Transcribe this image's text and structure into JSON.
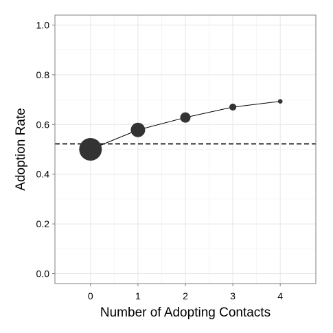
{
  "colors": {
    "background": "#ffffff",
    "panel_border": "#7f7f7f",
    "grid_major": "#e6e6e6",
    "grid_minor": "#f3f3f3",
    "line": "#000000",
    "point": "#333333",
    "reference_line": "#000000"
  },
  "chart_data": {
    "type": "line",
    "title": "",
    "xlabel": "Number of Adopting Contacts",
    "ylabel": "Adoption Rate",
    "xlim": [
      -0.75,
      4.75
    ],
    "ylim": [
      -0.04,
      1.04
    ],
    "x_ticks": [
      0,
      1,
      2,
      3,
      4
    ],
    "x_tick_labels": [
      "0",
      "1",
      "2",
      "3",
      "4"
    ],
    "y_ticks": [
      0.0,
      0.2,
      0.4,
      0.6,
      0.8,
      1.0
    ],
    "y_tick_labels": [
      "0.0",
      "0.2",
      "0.4",
      "0.6",
      "0.8",
      "1.0"
    ],
    "grid": true,
    "series": [
      {
        "x": [
          0,
          1,
          2,
          3,
          4
        ],
        "y": [
          0.5,
          0.578,
          0.628,
          0.67,
          0.693
        ],
        "point_size_rank": [
          5,
          3,
          2,
          1.2,
          0.6
        ]
      }
    ],
    "reference_line": {
      "orientation": "horizontal",
      "y": 0.522,
      "style": "dashed"
    }
  }
}
